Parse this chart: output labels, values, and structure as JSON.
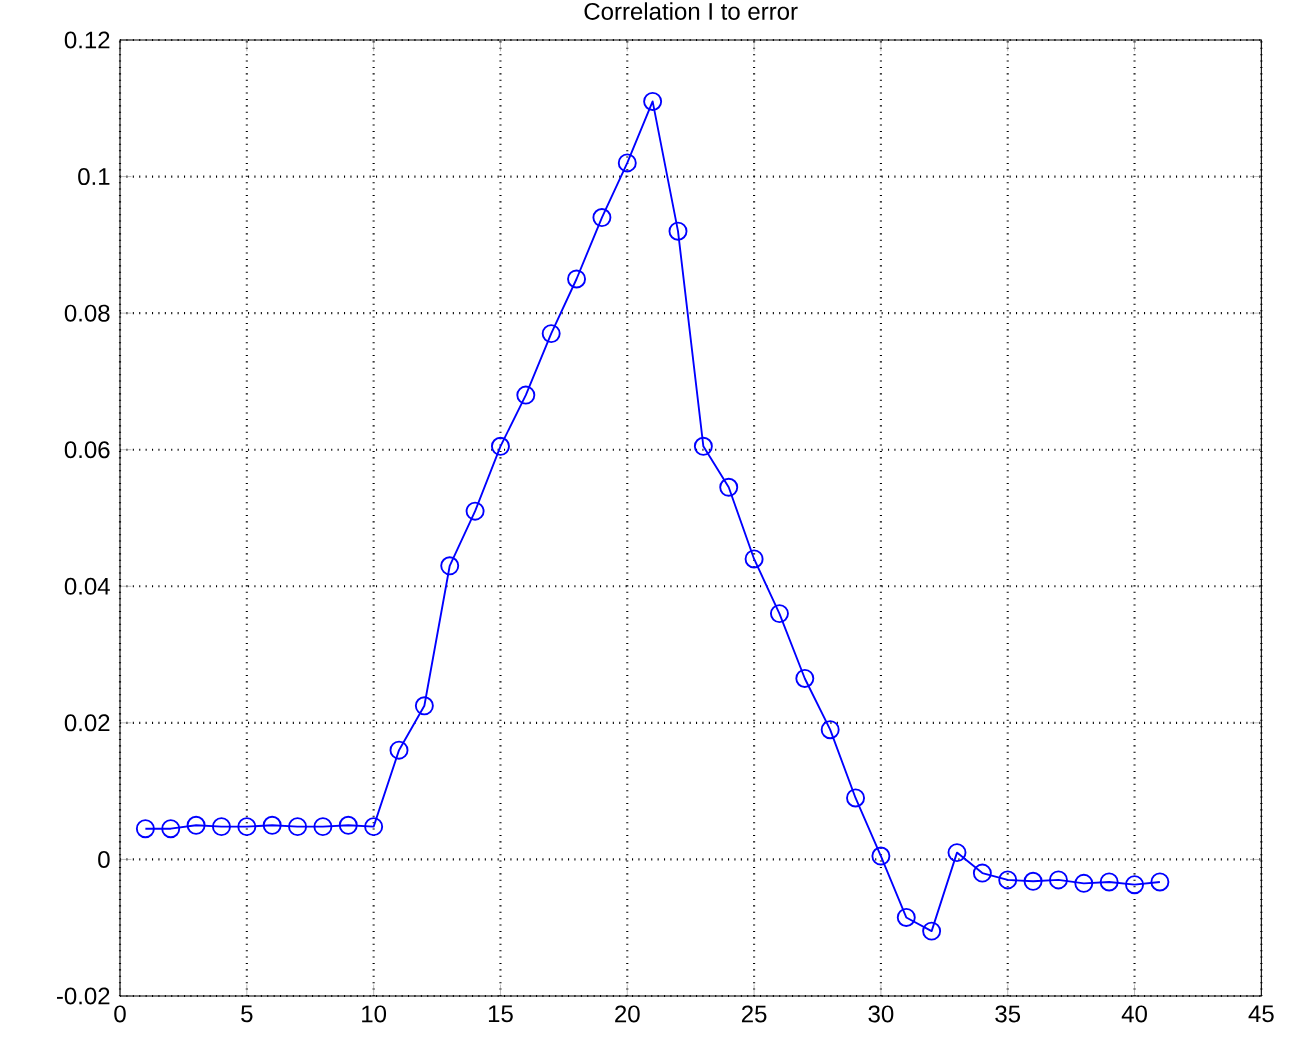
{
  "chart_data": {
    "type": "line",
    "title": "Correlation I to error",
    "x": [
      1,
      2,
      3,
      4,
      5,
      6,
      7,
      8,
      9,
      10,
      11,
      12,
      13,
      14,
      15,
      16,
      17,
      18,
      19,
      20,
      21,
      22,
      23,
      24,
      25,
      26,
      27,
      28,
      29,
      30,
      31,
      32,
      33,
      34,
      35,
      36,
      37,
      38,
      39,
      40,
      41
    ],
    "series": [
      {
        "color": "#0000ff",
        "values": [
          0.0045,
          0.0045,
          0.005,
          0.0048,
          0.0048,
          0.005,
          0.0048,
          0.0048,
          0.005,
          0.0048,
          0.016,
          0.0225,
          0.043,
          0.051,
          0.0605,
          0.068,
          0.077,
          0.085,
          0.094,
          0.102,
          0.111,
          0.092,
          0.0605,
          0.0545,
          0.044,
          0.036,
          0.0265,
          0.019,
          0.009,
          0.0005,
          -0.0085,
          -0.0105,
          0.001,
          -0.002,
          -0.003,
          -0.0032,
          -0.003,
          -0.0035,
          -0.0033,
          -0.0037,
          -0.0033
        ]
      }
    ],
    "xlim": [
      0,
      45
    ],
    "ylim": [
      -0.02,
      0.12
    ],
    "xticks": [
      0,
      5,
      10,
      15,
      20,
      25,
      30,
      35,
      40,
      45
    ],
    "yticks": [
      -0.02,
      0,
      0.02,
      0.04,
      0.06,
      0.08,
      0.1,
      0.12
    ],
    "grid": true,
    "marker": "circle",
    "line_style": "solid"
  }
}
